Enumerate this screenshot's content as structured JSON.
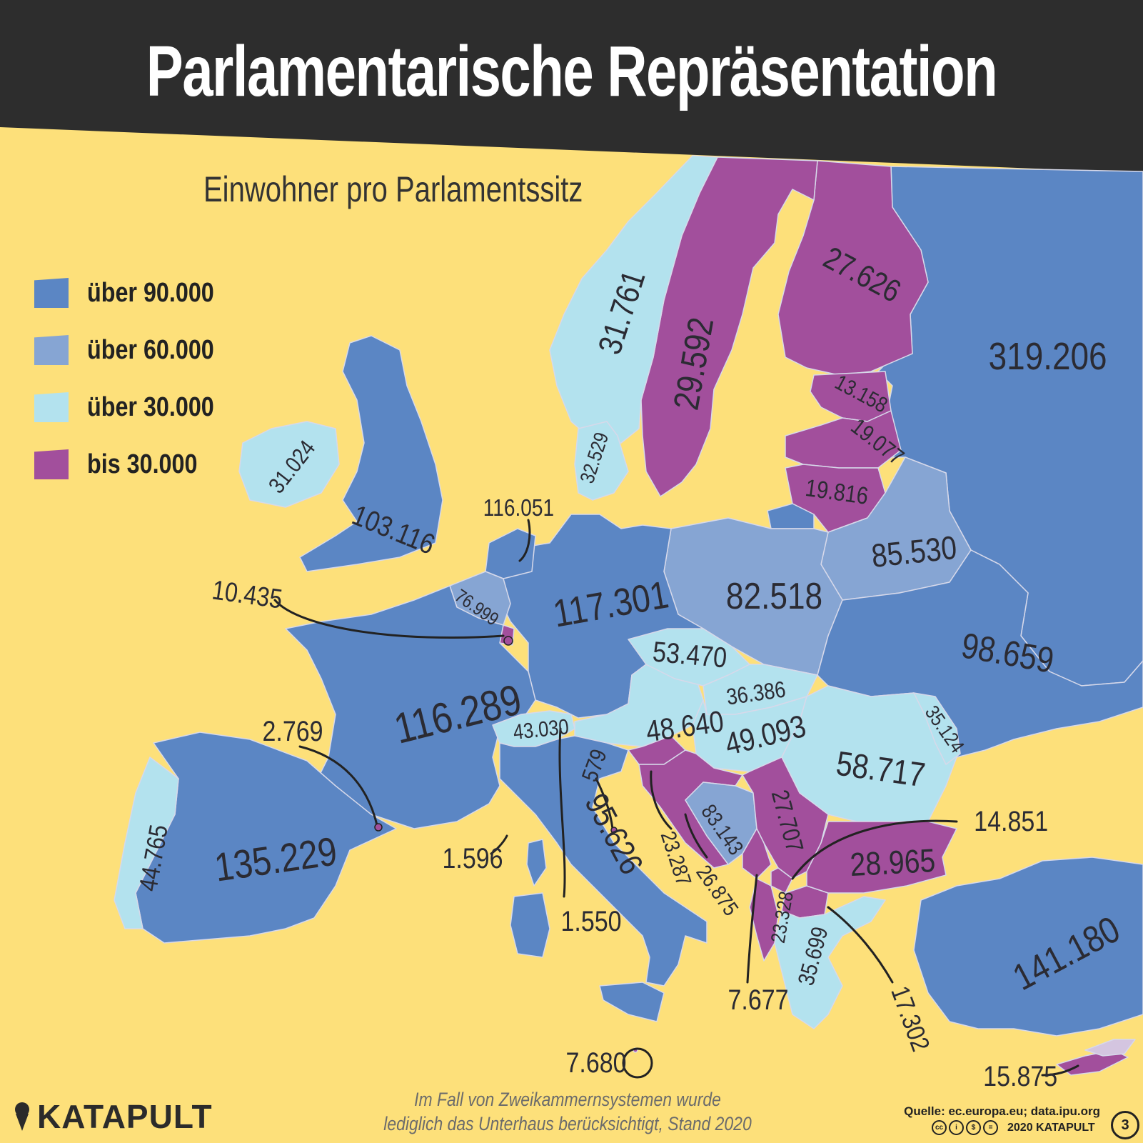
{
  "header": {
    "title": "Parlamentarische Repräsentation",
    "subtitle": "Einwohner pro Parlamentssitz"
  },
  "colors": {
    "sea": "#fde07a",
    "header_bg": "#2d2d2d",
    "border": "#c9cde6",
    "text": "#2b2b33"
  },
  "legend": [
    {
      "label": "über 90.000",
      "color": "#5b86c4"
    },
    {
      "label": "über 60.000",
      "color": "#86a5d3"
    },
    {
      "label": "über 30.000",
      "color": "#b3e2ee"
    },
    {
      "label": "bis 30.000",
      "color": "#a24f9c"
    }
  ],
  "countries": [
    {
      "name": "Russland",
      "value": "319.206",
      "category": "über 90.000"
    },
    {
      "name": "Finnland",
      "value": "27.626",
      "category": "bis 30.000"
    },
    {
      "name": "Schweden",
      "value": "29.592",
      "category": "bis 30.000"
    },
    {
      "name": "Norwegen",
      "value": "31.761",
      "category": "über 30.000"
    },
    {
      "name": "Estland",
      "value": "13.158",
      "category": "bis 30.000"
    },
    {
      "name": "Lettland",
      "value": "19.077",
      "category": "bis 30.000"
    },
    {
      "name": "Litauen",
      "value": "19.816",
      "category": "bis 30.000"
    },
    {
      "name": "Dänemark",
      "value": "32.529",
      "category": "über 30.000"
    },
    {
      "name": "Irland",
      "value": "31.024",
      "category": "über 30.000"
    },
    {
      "name": "Vereinigtes Königreich",
      "value": "103.116",
      "category": "über 90.000"
    },
    {
      "name": "Niederlande",
      "value": "116.051",
      "category": "über 90.000"
    },
    {
      "name": "Belgien",
      "value": "76.999",
      "category": "über 60.000"
    },
    {
      "name": "Luxemburg",
      "value": "10.435",
      "category": "bis 30.000"
    },
    {
      "name": "Deutschland",
      "value": "117.301",
      "category": "über 90.000"
    },
    {
      "name": "Polen",
      "value": "82.518",
      "category": "über 60.000"
    },
    {
      "name": "Belarus",
      "value": "85.530",
      "category": "über 60.000"
    },
    {
      "name": "Ukraine",
      "value": "98.659",
      "category": "über 90.000"
    },
    {
      "name": "Frankreich",
      "value": "116.289",
      "category": "über 90.000"
    },
    {
      "name": "Tschechien",
      "value": "53.470",
      "category": "über 30.000"
    },
    {
      "name": "Slowakei",
      "value": "36.386",
      "category": "über 30.000"
    },
    {
      "name": "Österreich",
      "value": "48.640",
      "category": "über 30.000"
    },
    {
      "name": "Ungarn",
      "value": "49.093",
      "category": "über 30.000"
    },
    {
      "name": "Moldau",
      "value": "35.124",
      "category": "über 30.000"
    },
    {
      "name": "Rumänien",
      "value": "58.717",
      "category": "über 30.000"
    },
    {
      "name": "Schweiz",
      "value": "43.030",
      "category": "über 30.000"
    },
    {
      "name": "Liechtenstein",
      "value": "1.550",
      "category": "bis 30.000"
    },
    {
      "name": "San Marino",
      "value": "579",
      "category": "bis 30.000"
    },
    {
      "name": "Italien",
      "value": "95.626",
      "category": "über 90.000"
    },
    {
      "name": "Monaco",
      "value": "1.596",
      "category": "bis 30.000"
    },
    {
      "name": "Andorra",
      "value": "2.769",
      "category": "bis 30.000"
    },
    {
      "name": "Spanien",
      "value": "135.229",
      "category": "über 90.000"
    },
    {
      "name": "Portugal",
      "value": "44.765",
      "category": "über 30.000"
    },
    {
      "name": "Kroatien",
      "value": "23.287",
      "category": "bis 30.000"
    },
    {
      "name": "Bosnien und Herzegowina",
      "value": "83.143",
      "category": "über 60.000"
    },
    {
      "name": "Serbien",
      "value": "27.707",
      "category": "bis 30.000"
    },
    {
      "name": "Slowenien",
      "value": "26.875",
      "category": "bis 30.000"
    },
    {
      "name": "Montenegro",
      "value": "7.677",
      "category": "bis 30.000"
    },
    {
      "name": "Nordmazedonien",
      "value": "23.328",
      "category": "bis 30.000"
    },
    {
      "name": "Kosovo",
      "value": "14.851",
      "category": "bis 30.000"
    },
    {
      "name": "Bulgarien",
      "value": "28.965",
      "category": "bis 30.000"
    },
    {
      "name": "Albanien",
      "value": "17.302",
      "category": "bis 30.000"
    },
    {
      "name": "Griechenland",
      "value": "35.699",
      "category": "über 30.000"
    },
    {
      "name": "Türkei",
      "value": "141.180",
      "category": "über 90.000"
    },
    {
      "name": "Malta",
      "value": "7.680",
      "category": "bis 30.000"
    },
    {
      "name": "Zypern",
      "value": "15.875",
      "category": "bis 30.000"
    }
  ],
  "footer": {
    "note_line1": "Im Fall von Zweikammernsystemen wurde",
    "note_line2": "lediglich das Unterhaus berücksichtigt, Stand 2020",
    "brand": "KATAPULT",
    "source": "Quelle: ec.europa.eu; data.ipu.org",
    "copyright": "2020 KATAPULT",
    "page_number": "3"
  }
}
